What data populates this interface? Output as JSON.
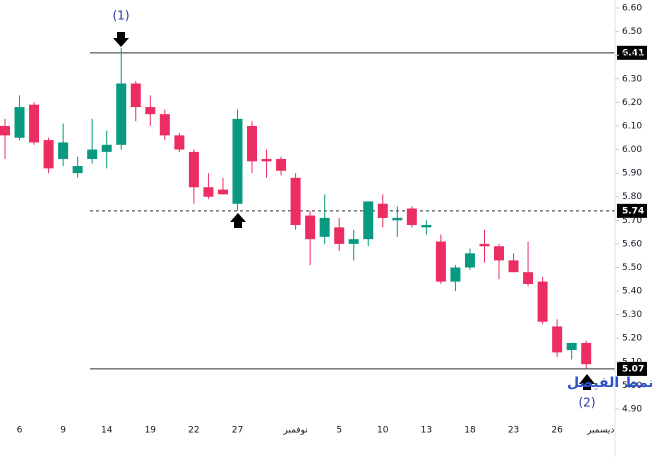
{
  "chart_data": {
    "type": "candlestick",
    "categories": [
      null,
      "6",
      null,
      null,
      "9",
      null,
      null,
      "14",
      null,
      null,
      "19",
      null,
      null,
      "22",
      null,
      null,
      "27",
      null,
      null,
      null,
      "نوفمبر",
      null,
      null,
      "5",
      null,
      null,
      "10",
      null,
      null,
      "13",
      null,
      null,
      "18",
      null,
      null,
      "23",
      null,
      null,
      "26",
      null,
      null,
      "ديسمبر"
    ],
    "open": [
      6.1,
      6.05,
      6.19,
      6.04,
      5.96,
      5.9,
      5.96,
      5.99,
      6.02,
      6.28,
      6.18,
      6.15,
      6.06,
      5.99,
      5.84,
      5.83,
      5.77,
      6.1,
      5.96,
      5.96,
      5.88,
      5.72,
      5.63,
      5.67,
      5.6,
      5.62,
      5.77,
      5.7,
      5.75,
      5.67,
      5.61,
      5.44,
      5.5,
      5.6,
      5.59,
      5.53,
      5.48,
      5.44,
      5.25,
      5.15,
      5.18,
      null
    ],
    "high": [
      6.13,
      6.23,
      6.2,
      6.05,
      6.11,
      5.97,
      6.13,
      6.08,
      6.43,
      6.29,
      6.23,
      6.17,
      6.07,
      6.0,
      5.9,
      5.88,
      6.17,
      6.12,
      6.0,
      5.97,
      5.9,
      5.74,
      5.81,
      5.71,
      5.66,
      5.78,
      5.81,
      5.76,
      5.76,
      5.7,
      5.64,
      5.51,
      5.58,
      5.66,
      5.6,
      5.56,
      5.61,
      5.46,
      5.28,
      5.18,
      5.19,
      null
    ],
    "low": [
      5.96,
      6.04,
      6.02,
      5.9,
      5.93,
      5.88,
      5.94,
      5.92,
      6.0,
      6.12,
      6.1,
      6.04,
      5.99,
      5.77,
      5.79,
      5.81,
      5.74,
      5.9,
      5.88,
      5.89,
      5.66,
      5.51,
      5.6,
      5.57,
      5.53,
      5.59,
      5.67,
      5.63,
      5.67,
      5.64,
      5.43,
      5.4,
      5.49,
      5.52,
      5.45,
      5.49,
      5.42,
      5.26,
      5.12,
      5.11,
      5.07,
      null
    ],
    "close": [
      6.06,
      6.18,
      6.03,
      5.92,
      6.03,
      5.93,
      6.0,
      6.02,
      6.28,
      6.18,
      6.15,
      6.06,
      6.0,
      5.84,
      5.8,
      5.81,
      6.13,
      5.95,
      5.95,
      5.91,
      5.68,
      5.62,
      5.71,
      5.6,
      5.62,
      5.78,
      5.71,
      5.71,
      5.68,
      5.68,
      5.44,
      5.5,
      5.56,
      5.59,
      5.53,
      5.48,
      5.43,
      5.27,
      5.14,
      5.18,
      5.09,
      null
    ],
    "up_color": "#089981",
    "down_color": "#ec2d62",
    "ylim": [
      4.86,
      6.62
    ],
    "yticks": [
      {
        "value": 6.6,
        "label": "6.60"
      },
      {
        "value": 6.5,
        "label": "6.50"
      },
      {
        "value": 6.4,
        "label": "6.40"
      },
      {
        "value": 6.3,
        "label": "6.30"
      },
      {
        "value": 6.2,
        "label": "6.20"
      },
      {
        "value": 6.1,
        "label": "6.10"
      },
      {
        "value": 6.0,
        "label": "6.00"
      },
      {
        "value": 5.9,
        "label": "5.90"
      },
      {
        "value": 5.8,
        "label": "5.80"
      },
      {
        "value": 5.7,
        "label": "5.70"
      },
      {
        "value": 5.6,
        "label": "5.60"
      },
      {
        "value": 5.5,
        "label": "5.50"
      },
      {
        "value": 5.4,
        "label": "5.40"
      },
      {
        "value": 5.3,
        "label": "5.30"
      },
      {
        "value": 5.2,
        "label": "5.20"
      },
      {
        "value": 5.1,
        "label": "5.10"
      },
      {
        "value": 5.0,
        "label": "5.00"
      },
      {
        "value": 4.9,
        "label": "4.90"
      }
    ],
    "hlines": [
      {
        "value": 6.41,
        "style": "solid"
      },
      {
        "value": 5.74,
        "style": "dashed"
      },
      {
        "value": 5.07,
        "style": "solid"
      }
    ],
    "annotations": [
      "(1)",
      "(2)",
      "الوصول الى هدف نمط الفيصل"
    ]
  }
}
